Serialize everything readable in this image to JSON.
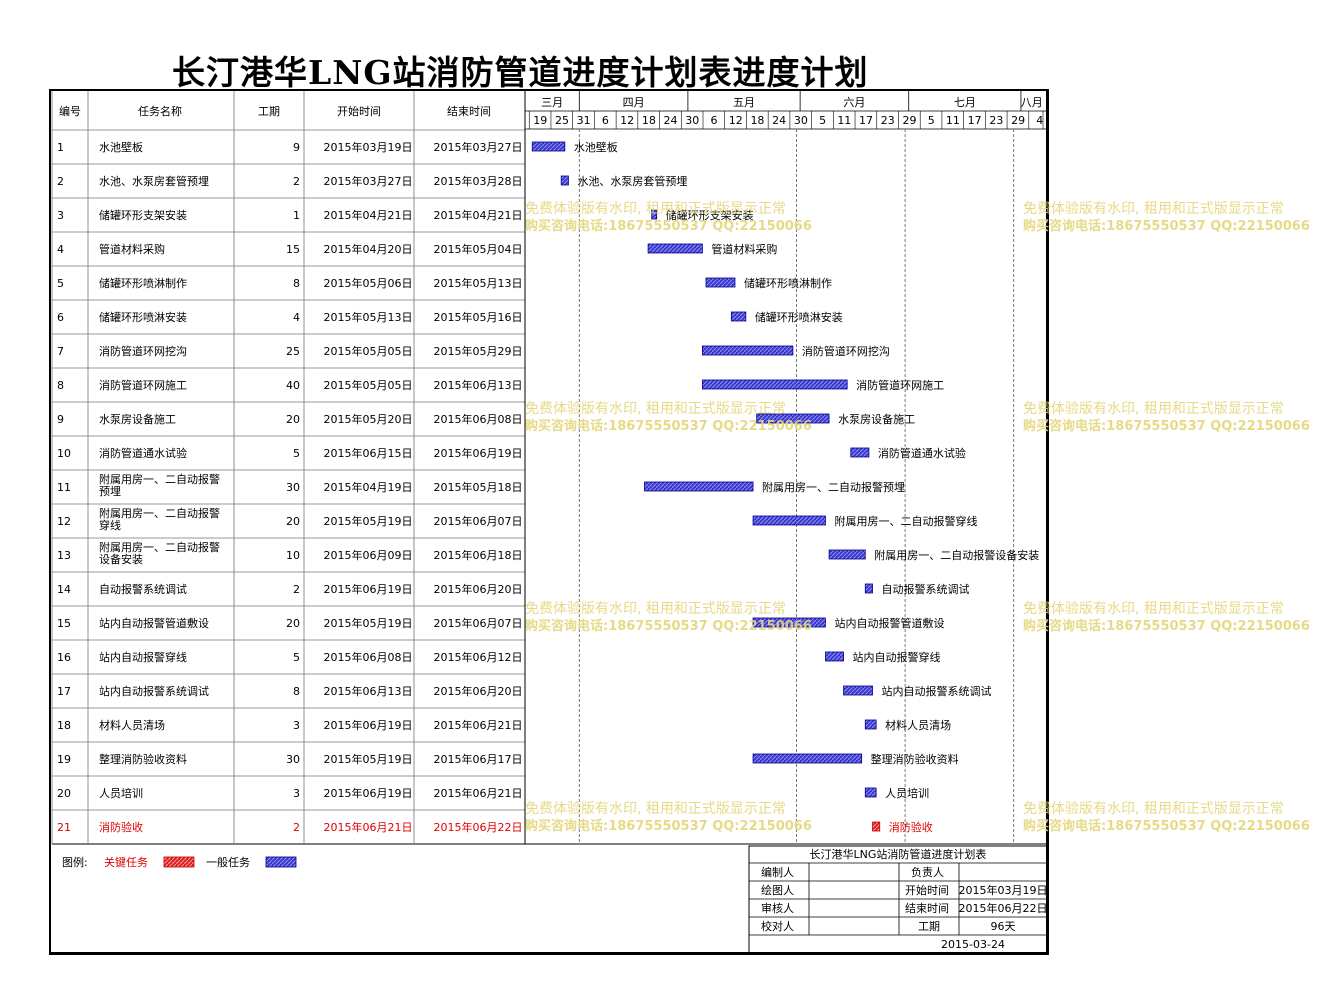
{
  "title": "长汀港华LNG站消防管道进度计划表进度计划",
  "headers": {
    "id": "编号",
    "name": "任务名称",
    "duration": "工期",
    "start": "开始时间",
    "end": "结束时间"
  },
  "timeline": {
    "months": [
      {
        "label": "三月",
        "from": "2015-03-17",
        "to": "2015-03-31"
      },
      {
        "label": "四月",
        "from": "2015-04-01",
        "to": "2015-04-30"
      },
      {
        "label": "五月",
        "from": "2015-05-01",
        "to": "2015-05-31"
      },
      {
        "label": "六月",
        "from": "2015-06-01",
        "to": "2015-06-30"
      },
      {
        "label": "七月",
        "from": "2015-07-01",
        "to": "2015-07-31"
      },
      {
        "label": "八月",
        "from": "2015-08-01",
        "to": "2015-08-06"
      }
    ],
    "week_ticks": [
      {
        "label": "19",
        "date": "2015-03-19"
      },
      {
        "label": "25",
        "date": "2015-03-25"
      },
      {
        "label": "31",
        "date": "2015-03-31"
      },
      {
        "label": "6",
        "date": "2015-04-06"
      },
      {
        "label": "12",
        "date": "2015-04-12"
      },
      {
        "label": "18",
        "date": "2015-04-18"
      },
      {
        "label": "24",
        "date": "2015-04-24"
      },
      {
        "label": "30",
        "date": "2015-04-30"
      },
      {
        "label": "6",
        "date": "2015-05-06"
      },
      {
        "label": "12",
        "date": "2015-05-12"
      },
      {
        "label": "18",
        "date": "2015-05-18"
      },
      {
        "label": "24",
        "date": "2015-05-24"
      },
      {
        "label": "30",
        "date": "2015-05-30"
      },
      {
        "label": "5",
        "date": "2015-06-05"
      },
      {
        "label": "11",
        "date": "2015-06-11"
      },
      {
        "label": "17",
        "date": "2015-06-17"
      },
      {
        "label": "23",
        "date": "2015-06-23"
      },
      {
        "label": "29",
        "date": "2015-06-29"
      },
      {
        "label": "5",
        "date": "2015-07-05"
      },
      {
        "label": "11",
        "date": "2015-07-11"
      },
      {
        "label": "17",
        "date": "2015-07-17"
      },
      {
        "label": "23",
        "date": "2015-07-23"
      },
      {
        "label": "29",
        "date": "2015-07-29"
      },
      {
        "label": "4",
        "date": "2015-08-04"
      }
    ]
  },
  "chart_data": {
    "type": "gantt",
    "x_range": [
      "2015-03-17",
      "2015-08-06"
    ],
    "tasks": [
      {
        "id": "1",
        "name": "水池壁板",
        "duration": "9",
        "start": "2015年03月19日",
        "end": "2015年03月27日",
        "start_date": "2015-03-19",
        "end_date": "2015-03-27",
        "critical": false
      },
      {
        "id": "2",
        "name": "水池、水泵房套管预埋",
        "duration": "2",
        "start": "2015年03月27日",
        "end": "2015年03月28日",
        "start_date": "2015-03-27",
        "end_date": "2015-03-28",
        "critical": false
      },
      {
        "id": "3",
        "name": "储罐环形支架安装",
        "duration": "1",
        "start": "2015年04月21日",
        "end": "2015年04月21日",
        "start_date": "2015-04-21",
        "end_date": "2015-04-21",
        "critical": false
      },
      {
        "id": "4",
        "name": "管道材料采购",
        "duration": "15",
        "start": "2015年04月20日",
        "end": "2015年05月04日",
        "start_date": "2015-04-20",
        "end_date": "2015-05-04",
        "critical": false
      },
      {
        "id": "5",
        "name": "储罐环形喷淋制作",
        "duration": "8",
        "start": "2015年05月06日",
        "end": "2015年05月13日",
        "start_date": "2015-05-06",
        "end_date": "2015-05-13",
        "critical": false
      },
      {
        "id": "6",
        "name": "储罐环形喷淋安装",
        "duration": "4",
        "start": "2015年05月13日",
        "end": "2015年05月16日",
        "start_date": "2015-05-13",
        "end_date": "2015-05-16",
        "critical": false
      },
      {
        "id": "7",
        "name": "消防管道环网挖沟",
        "duration": "25",
        "start": "2015年05月05日",
        "end": "2015年05月29日",
        "start_date": "2015-05-05",
        "end_date": "2015-05-29",
        "critical": false
      },
      {
        "id": "8",
        "name": "消防管道环网施工",
        "duration": "40",
        "start": "2015年05月05日",
        "end": "2015年06月13日",
        "start_date": "2015-05-05",
        "end_date": "2015-06-13",
        "critical": false
      },
      {
        "id": "9",
        "name": "水泵房设备施工",
        "duration": "20",
        "start": "2015年05月20日",
        "end": "2015年06月08日",
        "start_date": "2015-05-20",
        "end_date": "2015-06-08",
        "critical": false
      },
      {
        "id": "10",
        "name": "消防管道通水试验",
        "duration": "5",
        "start": "2015年06月15日",
        "end": "2015年06月19日",
        "start_date": "2015-06-15",
        "end_date": "2015-06-19",
        "critical": false
      },
      {
        "id": "11",
        "name": "附属用房一、二自动报警预埋",
        "duration": "30",
        "start": "2015年04月19日",
        "end": "2015年05月18日",
        "start_date": "2015-04-19",
        "end_date": "2015-05-18",
        "critical": false
      },
      {
        "id": "12",
        "name": "附属用房一、二自动报警穿线",
        "duration": "20",
        "start": "2015年05月19日",
        "end": "2015年06月07日",
        "start_date": "2015-05-19",
        "end_date": "2015-06-07",
        "critical": false
      },
      {
        "id": "13",
        "name": "附属用房一、二自动报警设备安装",
        "duration": "10",
        "start": "2015年06月09日",
        "end": "2015年06月18日",
        "start_date": "2015-06-09",
        "end_date": "2015-06-18",
        "critical": false
      },
      {
        "id": "14",
        "name": "自动报警系统调试",
        "duration": "2",
        "start": "2015年06月19日",
        "end": "2015年06月20日",
        "start_date": "2015-06-19",
        "end_date": "2015-06-20",
        "critical": false
      },
      {
        "id": "15",
        "name": "站内自动报警管道敷设",
        "duration": "20",
        "start": "2015年05月19日",
        "end": "2015年06月07日",
        "start_date": "2015-05-19",
        "end_date": "2015-06-07",
        "critical": false
      },
      {
        "id": "16",
        "name": "站内自动报警穿线",
        "duration": "5",
        "start": "2015年06月08日",
        "end": "2015年06月12日",
        "start_date": "2015-06-08",
        "end_date": "2015-06-12",
        "critical": false
      },
      {
        "id": "17",
        "name": "站内自动报警系统调试",
        "duration": "8",
        "start": "2015年06月13日",
        "end": "2015年06月20日",
        "start_date": "2015-06-13",
        "end_date": "2015-06-20",
        "critical": false
      },
      {
        "id": "18",
        "name": "材料人员清场",
        "duration": "3",
        "start": "2015年06月19日",
        "end": "2015年06月21日",
        "start_date": "2015-06-19",
        "end_date": "2015-06-21",
        "critical": false
      },
      {
        "id": "19",
        "name": "整理消防验收资料",
        "duration": "30",
        "start": "2015年05月19日",
        "end": "2015年06月17日",
        "start_date": "2015-05-19",
        "end_date": "2015-06-17",
        "critical": false
      },
      {
        "id": "20",
        "name": "人员培训",
        "duration": "3",
        "start": "2015年06月19日",
        "end": "2015年06月21日",
        "start_date": "2015-06-19",
        "end_date": "2015-06-21",
        "critical": false
      },
      {
        "id": "21",
        "name": "消防验收",
        "duration": "2",
        "start": "2015年06月21日",
        "end": "2015年06月22日",
        "start_date": "2015-06-21",
        "end_date": "2015-06-22",
        "critical": true
      }
    ],
    "today_lines": [
      "2015-03-31",
      "2015-05-30",
      "2015-06-29",
      "2015-07-29"
    ]
  },
  "legend": {
    "label": "图例:",
    "critical": "关键任务",
    "normal": "一般任务",
    "critical_color": "#e02020",
    "normal_color": "#3a3ad0"
  },
  "info_box": {
    "title": "长汀港华LNG站消防管道进度计划表",
    "compiler_label": "编制人",
    "compiler": "",
    "owner_label": "负责人",
    "owner": "",
    "drawer_label": "绘图人",
    "drawer": "",
    "start_label": "开始时间",
    "start": "2015年03月19日",
    "reviewer_label": "审核人",
    "reviewer": "",
    "end_label": "结束时间",
    "end": "2015年06月22日",
    "checker_label": "校对人",
    "checker": "",
    "duration_label": "工期",
    "duration": "96天",
    "date": "2015-03-24"
  },
  "watermark": {
    "line1": "免费体验版有水印, 租用和正式版显示正常",
    "line2": "购买咨询电话:18675550537 QQ:22150066"
  }
}
